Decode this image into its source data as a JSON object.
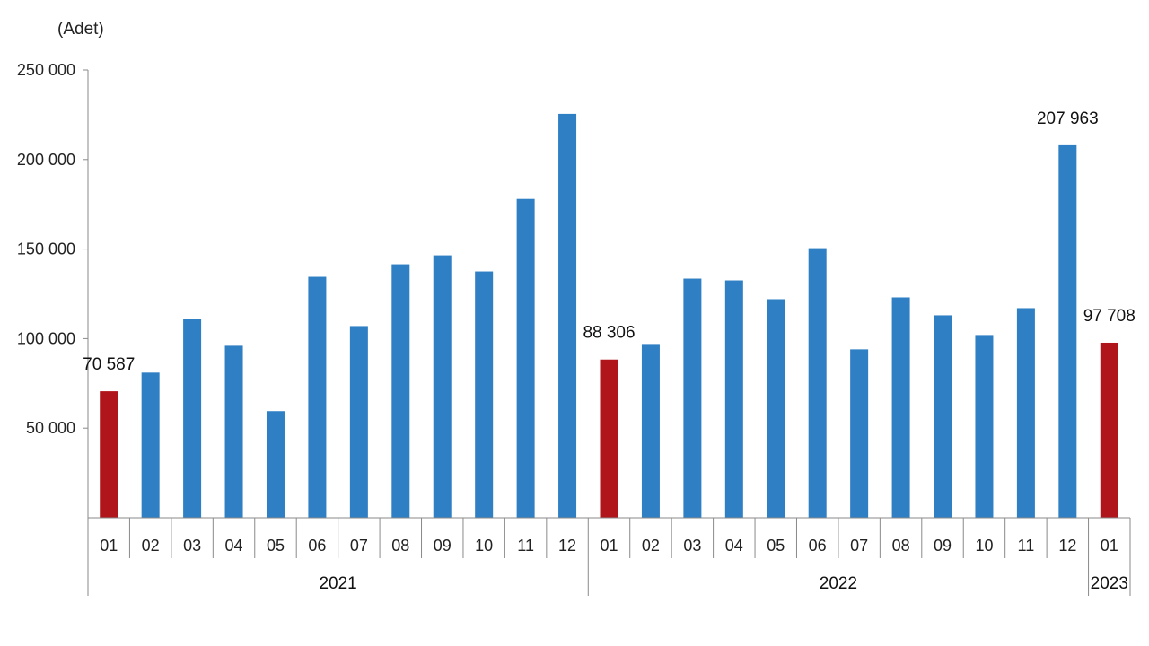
{
  "chart_data": {
    "type": "bar",
    "unit_label": "(Adet)",
    "ylim": [
      0,
      250000
    ],
    "y_ticks": [
      50000,
      100000,
      150000,
      200000,
      250000
    ],
    "y_tick_labels": [
      "50 000",
      "100 000",
      "150 000",
      "200 000",
      "250 000"
    ],
    "categories": [
      "01",
      "02",
      "03",
      "04",
      "05",
      "06",
      "07",
      "08",
      "09",
      "10",
      "11",
      "12",
      "01",
      "02",
      "03",
      "04",
      "05",
      "06",
      "07",
      "08",
      "09",
      "10",
      "11",
      "12",
      "01"
    ],
    "values": [
      70587,
      81000,
      111000,
      96000,
      59500,
      134500,
      107000,
      141500,
      146500,
      137500,
      178000,
      225500,
      88306,
      97000,
      133500,
      132500,
      122000,
      150500,
      94000,
      123000,
      113000,
      102000,
      117000,
      207963,
      97708
    ],
    "highlight_indices": [
      0,
      12,
      24
    ],
    "data_labels": [
      {
        "index": 0,
        "text": "70 587"
      },
      {
        "index": 12,
        "text": "88 306"
      },
      {
        "index": 23,
        "text": "207 963"
      },
      {
        "index": 24,
        "text": "97 708"
      }
    ],
    "year_groups": [
      {
        "label": "2021",
        "start": 0,
        "end": 11
      },
      {
        "label": "2022",
        "start": 12,
        "end": 23
      },
      {
        "label": "2023",
        "start": 24,
        "end": 24
      }
    ],
    "colors": {
      "bar": "#2e7fc4",
      "highlight": "#b0151b",
      "axis": "#8a8a8a"
    },
    "grid": false
  }
}
